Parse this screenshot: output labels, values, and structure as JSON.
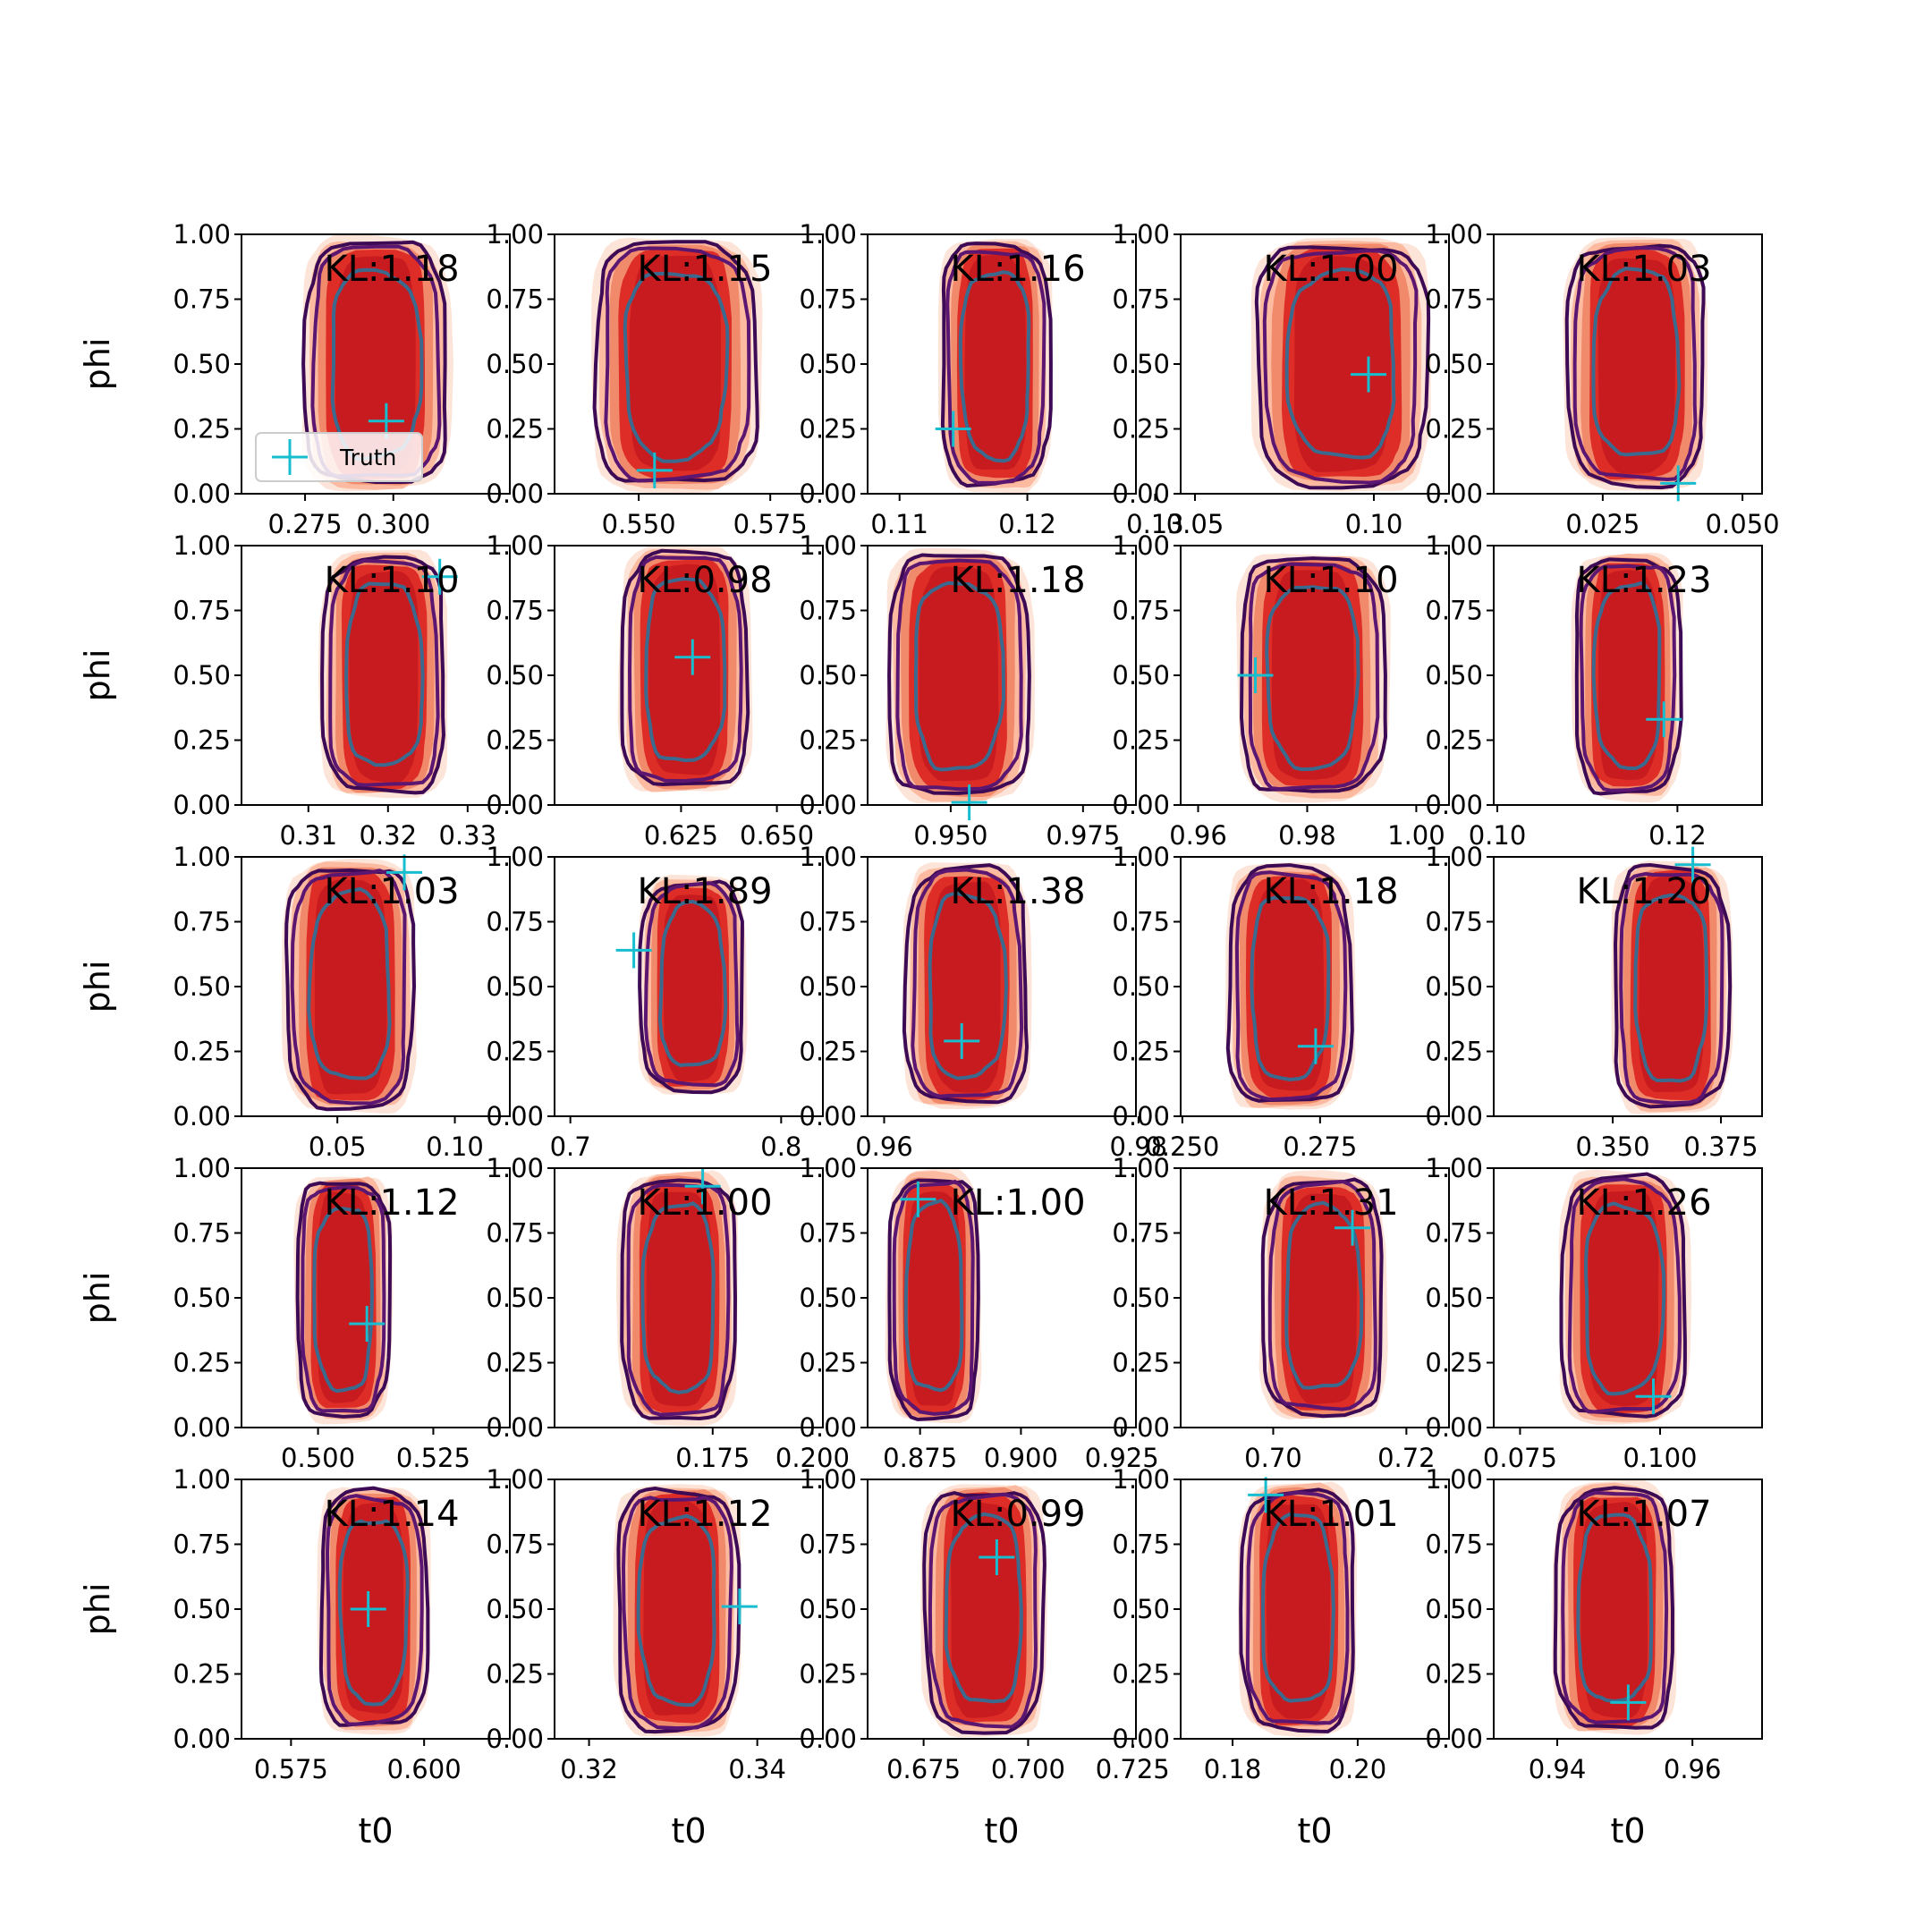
{
  "colors": {
    "filled_outer": "#fde4d8",
    "filled_mid": "#fcbba1",
    "filled_inner_light": "#f08a6a",
    "filled_core": "#de2d26",
    "filled_core_dark": "#c81b1f",
    "contour_outer": "#3d0b55",
    "contour_mid": "#5a1670",
    "contour_inner": "#3b6a8e",
    "truth_marker": "#17becf",
    "axis": "#000000"
  },
  "legend": {
    "label": "Truth"
  },
  "chart_data": {
    "type": "contour-grid",
    "rows": 5,
    "cols": 5,
    "xlabel": "t0",
    "ylabel": "phi",
    "ylim": [
      0,
      1
    ],
    "yticks": [
      "0.00",
      "0.25",
      "0.50",
      "0.75",
      "1.00"
    ],
    "panels": [
      {
        "kl": "KL:1.18",
        "xlim": [
          0.257,
          0.333
        ],
        "xticks": [
          {
            "v": 0.275,
            "l": "0.275"
          },
          {
            "v": 0.3,
            "l": "0.300"
          }
        ],
        "center": [
          0.295,
          0.5
        ],
        "w": 0.019,
        "h": 0.92,
        "truth": [
          0.298,
          0.28
        ],
        "legend": true
      },
      {
        "kl": "KL:1.15",
        "xlim": [
          0.534,
          0.585
        ],
        "xticks": [
          {
            "v": 0.55,
            "l": "0.550"
          },
          {
            "v": 0.575,
            "l": "0.575"
          }
        ],
        "center": [
          0.557,
          0.5
        ],
        "w": 0.0145,
        "h": 0.92,
        "truth": [
          0.553,
          0.09
        ]
      },
      {
        "kl": "KL:1.16",
        "xlim": [
          0.1075,
          0.1285
        ],
        "xticks": [
          {
            "v": 0.11,
            "l": "0.11"
          },
          {
            "v": 0.12,
            "l": "0.12"
          },
          {
            "v": 0.13,
            "l": "0.13"
          }
        ],
        "center": [
          0.1175,
          0.5
        ],
        "w": 0.004,
        "h": 0.92,
        "truth": [
          0.1142,
          0.25
        ]
      },
      {
        "kl": "KL:1.00",
        "xlim": [
          0.046,
          0.121
        ],
        "xticks": [
          {
            "v": 0.05,
            "l": "0.05"
          },
          {
            "v": 0.1,
            "l": "0.10"
          }
        ],
        "center": [
          0.091,
          0.5
        ],
        "w": 0.0225,
        "h": 0.92,
        "truth": [
          0.0985,
          0.46
        ]
      },
      {
        "kl": "KL:1.03",
        "xlim": [
          0.0055,
          0.0535
        ],
        "xticks": [
          {
            "v": 0.025,
            "l": "0.025"
          },
          {
            "v": 0.05,
            "l": "0.050"
          }
        ],
        "center": [
          0.031,
          0.5
        ],
        "w": 0.0115,
        "h": 0.92,
        "truth": [
          0.0385,
          0.04
        ]
      },
      {
        "kl": "KL:1.10",
        "xlim": [
          0.3016,
          0.3353
        ],
        "xticks": [
          {
            "v": 0.31,
            "l": "0.31"
          },
          {
            "v": 0.32,
            "l": "0.32"
          },
          {
            "v": 0.33,
            "l": "0.33"
          }
        ],
        "center": [
          0.3195,
          0.5
        ],
        "w": 0.0072,
        "h": 0.9,
        "truth": [
          0.3265,
          0.88
        ]
      },
      {
        "kl": "KL:0.98",
        "xlim": [
          0.592,
          0.662
        ],
        "xticks": [
          {
            "v": 0.625,
            "l": "0.625"
          },
          {
            "v": 0.65,
            "l": "0.650"
          }
        ],
        "center": [
          0.626,
          0.52
        ],
        "w": 0.0155,
        "h": 0.9,
        "truth": [
          0.628,
          0.57
        ]
      },
      {
        "kl": "KL:1.18",
        "xlim": [
          0.9343,
          0.985
        ],
        "xticks": [
          {
            "v": 0.95,
            "l": "0.950"
          },
          {
            "v": 0.975,
            "l": "0.975"
          }
        ],
        "center": [
          0.9515,
          0.5
        ],
        "w": 0.0125,
        "h": 0.92,
        "truth": [
          0.9535,
          0.01
        ]
      },
      {
        "kl": "KL:1.10",
        "xlim": [
          0.9568,
          1.006
        ],
        "xticks": [
          {
            "v": 0.96,
            "l": "0.96"
          },
          {
            "v": 0.98,
            "l": "0.98"
          },
          {
            "v": 1.0,
            "l": "1.00"
          }
        ],
        "center": [
          0.981,
          0.5
        ],
        "w": 0.0125,
        "h": 0.9,
        "truth": [
          0.9705,
          0.5
        ]
      },
      {
        "kl": "KL:1.23",
        "xlim": [
          0.0996,
          0.1294
        ],
        "xticks": [
          {
            "v": 0.1,
            "l": "0.10"
          },
          {
            "v": 0.12,
            "l": "0.12"
          }
        ],
        "center": [
          0.1145,
          0.5
        ],
        "w": 0.0055,
        "h": 0.9,
        "truth": [
          0.1185,
          0.33
        ]
      },
      {
        "kl": "KL:1.03",
        "xlim": [
          0.0092,
          0.1234
        ],
        "xticks": [
          {
            "v": 0.05,
            "l": "0.05"
          },
          {
            "v": 0.1,
            "l": "0.10"
          }
        ],
        "center": [
          0.0555,
          0.5
        ],
        "w": 0.0255,
        "h": 0.92,
        "truth": [
          0.0785,
          0.94
        ]
      },
      {
        "kl": "KL:1.89",
        "xlim": [
          0.6925,
          0.8198
        ],
        "xticks": [
          {
            "v": 0.7,
            "l": "0.7"
          },
          {
            "v": 0.8,
            "l": "0.8"
          }
        ],
        "center": [
          0.758,
          0.5
        ],
        "w": 0.023,
        "h": 0.8,
        "truth": [
          0.7301,
          0.64
        ]
      },
      {
        "kl": "KL:1.38",
        "xlim": [
          0.9587,
          0.9798
        ],
        "xticks": [
          {
            "v": 0.96,
            "l": "0.96"
          },
          {
            "v": 0.98,
            "l": "0.98"
          }
        ],
        "center": [
          0.9665,
          0.5
        ],
        "w": 0.0045,
        "h": 0.9,
        "truth": [
          0.9661,
          0.29
        ]
      },
      {
        "kl": "KL:1.18",
        "xlim": [
          0.2497,
          0.2984
        ],
        "xticks": [
          {
            "v": 0.25,
            "l": "0.250"
          },
          {
            "v": 0.275,
            "l": "0.275"
          }
        ],
        "center": [
          0.2695,
          0.5
        ],
        "w": 0.0105,
        "h": 0.9,
        "truth": [
          0.2742,
          0.27
        ]
      },
      {
        "kl": "KL:1.20",
        "xlim": [
          0.3225,
          0.3845
        ],
        "xticks": [
          {
            "v": 0.35,
            "l": "0.350"
          },
          {
            "v": 0.375,
            "l": "0.375"
          }
        ],
        "center": [
          0.3635,
          0.5
        ],
        "w": 0.0125,
        "h": 0.92,
        "truth": [
          0.3685,
          0.97
        ]
      },
      {
        "kl": "KL:1.12",
        "xlim": [
          0.4834,
          0.5416
        ],
        "xticks": [
          {
            "v": 0.5,
            "l": "0.500"
          },
          {
            "v": 0.525,
            "l": "0.525"
          }
        ],
        "center": [
          0.5055,
          0.5
        ],
        "w": 0.0095,
        "h": 0.9,
        "truth": [
          0.5106,
          0.4
        ]
      },
      {
        "kl": "KL:1.00",
        "xlim": [
          0.1354,
          0.2026
        ],
        "xticks": [
          {
            "v": 0.175,
            "l": "0.175"
          },
          {
            "v": 0.2,
            "l": "0.200"
          }
        ],
        "center": [
          0.1665,
          0.5
        ],
        "w": 0.0135,
        "h": 0.92,
        "truth": [
          0.1725,
          0.93
        ]
      },
      {
        "kl": "KL:1.00",
        "xlim": [
          0.862,
          0.9285
        ],
        "xticks": [
          {
            "v": 0.875,
            "l": "0.875"
          },
          {
            "v": 0.9,
            "l": "0.900"
          },
          {
            "v": 0.925,
            "l": "0.925"
          }
        ],
        "center": [
          0.8785,
          0.5
        ],
        "w": 0.0105,
        "h": 0.92,
        "truth": [
          0.8745,
          0.88
        ]
      },
      {
        "kl": "KL:1.31",
        "xlim": [
          0.6861,
          0.7264
        ],
        "xticks": [
          {
            "v": 0.7,
            "l": "0.70"
          },
          {
            "v": 0.72,
            "l": "0.72"
          }
        ],
        "center": [
          0.7075,
          0.5
        ],
        "w": 0.0085,
        "h": 0.9,
        "truth": [
          0.7119,
          0.77
        ]
      },
      {
        "kl": "KL:1.26",
        "xlim": [
          0.0703,
          0.1182
        ],
        "xticks": [
          {
            "v": 0.075,
            "l": "0.075"
          },
          {
            "v": 0.1,
            "l": "0.100"
          }
        ],
        "center": [
          0.0935,
          0.5
        ],
        "w": 0.0105,
        "h": 0.92,
        "truth": [
          0.0988,
          0.12
        ]
      },
      {
        "kl": "KL:1.14",
        "xlim": [
          0.5657,
          0.6161
        ],
        "xticks": [
          {
            "v": 0.575,
            "l": "0.575"
          },
          {
            "v": 0.6,
            "l": "0.600"
          }
        ],
        "center": [
          0.5905,
          0.5
        ],
        "w": 0.0095,
        "h": 0.9,
        "truth": [
          0.5895,
          0.5
        ]
      },
      {
        "kl": "KL:1.12",
        "xlim": [
          0.3159,
          0.3478
        ],
        "xticks": [
          {
            "v": 0.32,
            "l": "0.32"
          },
          {
            "v": 0.34,
            "l": "0.34"
          }
        ],
        "center": [
          0.3305,
          0.5
        ],
        "w": 0.0068,
        "h": 0.92,
        "truth": [
          0.3379,
          0.51
        ]
      },
      {
        "kl": "KL:0.99",
        "xlim": [
          0.6616,
          0.7258
        ],
        "xticks": [
          {
            "v": 0.675,
            "l": "0.675"
          },
          {
            "v": 0.7,
            "l": "0.700"
          },
          {
            "v": 0.725,
            "l": "0.725"
          }
        ],
        "center": [
          0.6895,
          0.5
        ],
        "w": 0.0135,
        "h": 0.92,
        "truth": [
          0.6925,
          0.7
        ]
      },
      {
        "kl": "KL:1.01",
        "xlim": [
          0.1717,
          0.2146
        ],
        "xticks": [
          {
            "v": 0.18,
            "l": "0.18"
          },
          {
            "v": 0.2,
            "l": "0.20"
          }
        ],
        "center": [
          0.1905,
          0.5
        ],
        "w": 0.0085,
        "h": 0.92,
        "truth": [
          0.1853,
          0.94
        ]
      },
      {
        "kl": "KL:1.07",
        "xlim": [
          0.9306,
          0.9703
        ],
        "xticks": [
          {
            "v": 0.94,
            "l": "0.94"
          },
          {
            "v": 0.96,
            "l": "0.96"
          }
        ],
        "center": [
          0.9485,
          0.5
        ],
        "w": 0.0082,
        "h": 0.92,
        "truth": [
          0.9505,
          0.14
        ]
      }
    ]
  }
}
